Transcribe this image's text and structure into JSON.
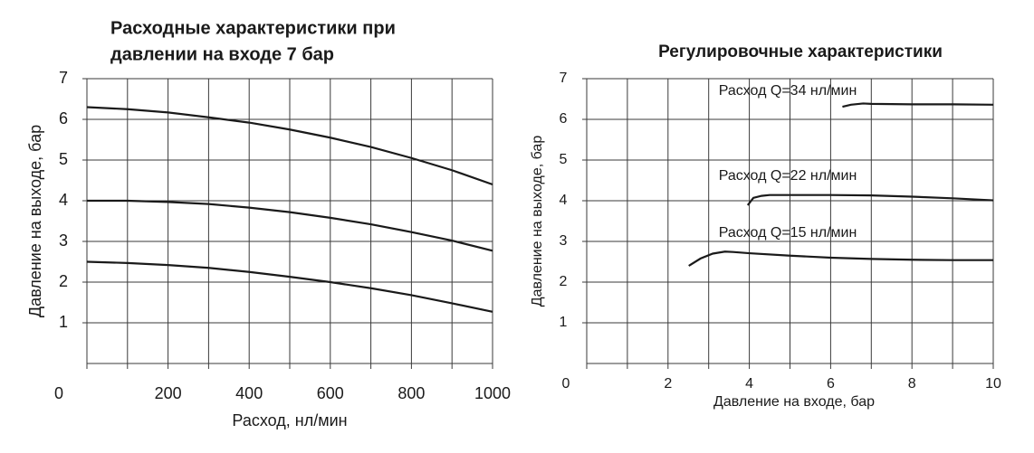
{
  "chart_data": [
    {
      "type": "line",
      "title": [
        "Расходные характеристики при",
        "давлении на входе 7 бар"
      ],
      "xlabel": "Расход, нл/мин",
      "ylabel": "Давление на выходе, бар",
      "x": [
        0,
        100,
        200,
        300,
        400,
        500,
        600,
        700,
        800,
        900,
        1000
      ],
      "series": [
        {
          "color": "#1a1a1a",
          "values": [
            6.3,
            6.25,
            6.17,
            6.05,
            5.92,
            5.75,
            5.55,
            5.32,
            5.05,
            4.75,
            4.4
          ]
        },
        {
          "color": "#1a1a1a",
          "values": [
            4.0,
            4.0,
            3.97,
            3.92,
            3.83,
            3.72,
            3.58,
            3.42,
            3.23,
            3.02,
            2.77
          ]
        },
        {
          "color": "#1a1a1a",
          "values": [
            2.5,
            2.47,
            2.42,
            2.35,
            2.25,
            2.13,
            2.0,
            1.85,
            1.68,
            1.48,
            1.27
          ]
        }
      ],
      "xlim": [
        0,
        1000
      ],
      "xticks": [
        0,
        200,
        400,
        600,
        800,
        1000
      ],
      "xgrid": [
        0,
        100,
        200,
        300,
        400,
        500,
        600,
        700,
        800,
        900,
        1000
      ],
      "ylim": [
        0,
        7
      ],
      "yticks": [
        1,
        2,
        3,
        4,
        5,
        6,
        7
      ],
      "grid": true
    },
    {
      "type": "line",
      "title": [
        "Регулировочные характеристики"
      ],
      "xlabel": "Давление на входе, бар",
      "ylabel": "Давление на выходе, бар",
      "series": [
        {
          "name": "Расход Q=34 нл/мин",
          "color": "#1a1a1a",
          "x": [
            6.29,
            6.5,
            6.8,
            7.0,
            8,
            9,
            10
          ],
          "values": [
            6.31,
            6.36,
            6.39,
            6.38,
            6.37,
            6.37,
            6.36
          ]
        },
        {
          "name": "Расход Q=22 нл/мин",
          "color": "#1a1a1a",
          "x": [
            3.96,
            4.1,
            4.3,
            4.5,
            6,
            7,
            8,
            9,
            10
          ],
          "values": [
            3.89,
            4.07,
            4.12,
            4.14,
            4.14,
            4.13,
            4.1,
            4.06,
            4.01
          ]
        },
        {
          "name": "Расход Q=15 нл/мин",
          "color": "#1a1a1a",
          "x": [
            2.51,
            2.8,
            3.1,
            3.4,
            3.6,
            4,
            5,
            6,
            7,
            8,
            9,
            10
          ],
          "values": [
            2.4,
            2.58,
            2.7,
            2.75,
            2.74,
            2.71,
            2.65,
            2.6,
            2.57,
            2.55,
            2.54,
            2.54
          ]
        }
      ],
      "xlim": [
        0,
        10
      ],
      "xticks": [
        0,
        2,
        4,
        6,
        8,
        10
      ],
      "xgrid": [
        0,
        1,
        2,
        3,
        4,
        5,
        6,
        7,
        8,
        9,
        10
      ],
      "ylim": [
        0,
        7
      ],
      "yticks": [
        1,
        2,
        3,
        4,
        5,
        6,
        7
      ],
      "grid": true
    }
  ]
}
